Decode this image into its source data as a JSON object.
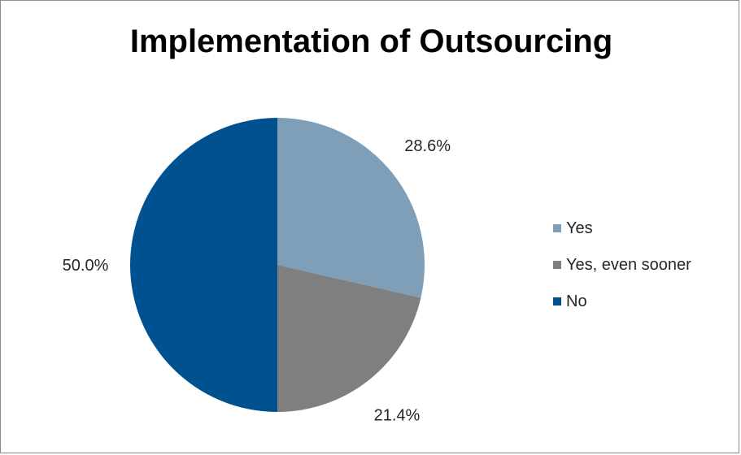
{
  "chart_data": {
    "type": "pie",
    "title": "Implementation of Outsourcing",
    "categories": [
      "Yes",
      "Yes, even sooner",
      "No"
    ],
    "values": [
      28.6,
      21.4,
      50.0
    ],
    "data_labels": [
      "28.6%",
      "21.4%",
      "50.0%"
    ],
    "colors": [
      "#7f9fb8",
      "#7f7f7f",
      "#00518f"
    ],
    "legend_position": "right",
    "start_angle": "12 o'clock",
    "direction": "clockwise"
  }
}
